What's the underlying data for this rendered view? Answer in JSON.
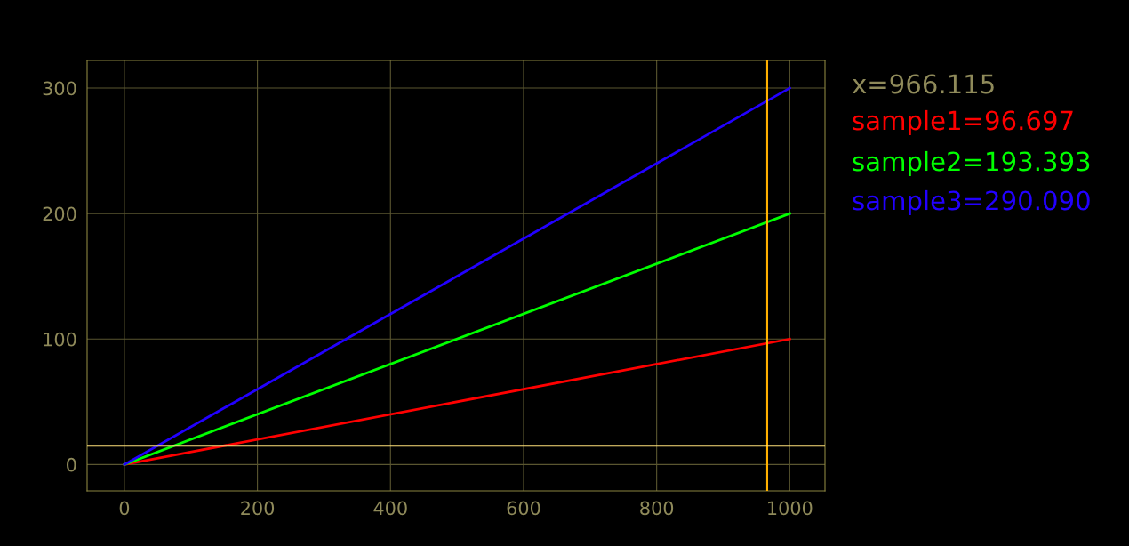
{
  "chart_data": {
    "type": "line",
    "x": [
      0,
      1000
    ],
    "xlim": [
      -56,
      1053
    ],
    "ylim": [
      -21,
      322
    ],
    "xticks": [
      0,
      200,
      400,
      600,
      800,
      1000
    ],
    "yticks": [
      0,
      100,
      200,
      300
    ],
    "grid": true,
    "marker": "none",
    "line_style": "solid",
    "series": [
      {
        "color": "#ff0000",
        "values": [
          0,
          100
        ]
      },
      {
        "color": "#00ff00",
        "values": [
          0,
          200
        ]
      },
      {
        "color": "#2200ff",
        "values": [
          0,
          300
        ]
      }
    ],
    "ref_lines": [
      {
        "axis": "x",
        "value": 966.115,
        "color": "#ffb000"
      },
      {
        "axis": "y",
        "value": 15,
        "color": "#ffe07a"
      }
    ],
    "annotations": [
      "x=966.115",
      "sample1=96.697",
      "sample2=193.393",
      "sample3=290.090"
    ]
  }
}
